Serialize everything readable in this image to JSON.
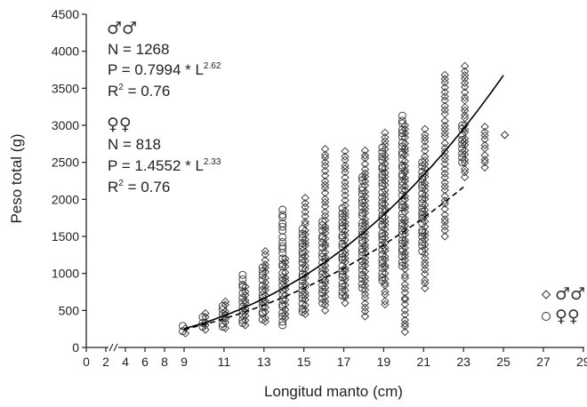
{
  "chart_data": {
    "type": "scatter",
    "xlabel": "Longitud manto (cm)",
    "ylabel": "Peso total (g)",
    "xlim": [
      0,
      29
    ],
    "ylim": [
      0,
      4500
    ],
    "x_ticks": [
      0,
      2,
      4,
      6,
      8,
      9,
      11,
      13,
      15,
      17,
      19,
      21,
      23,
      25,
      27,
      29
    ],
    "y_ticks": [
      0,
      500,
      1000,
      1500,
      2000,
      2500,
      3000,
      3500,
      4000,
      4500
    ],
    "axis_break": "x between 2 and 9",
    "grid": false,
    "legend_position": "bottom-right",
    "series": [
      {
        "name": "♂♂",
        "marker": "diamond",
        "line_style": "solid",
        "curve": {
          "a": 0.7994,
          "b": 2.62,
          "x_range": [
            9,
            25
          ]
        },
        "points": [
          {
            "x": 9,
            "ymin": 190,
            "ymax": 260
          },
          {
            "x": 10,
            "ymin": 240,
            "ymax": 460
          },
          {
            "x": 11,
            "ymin": 260,
            "ymax": 620
          },
          {
            "x": 12,
            "ymin": 300,
            "ymax": 820
          },
          {
            "x": 13,
            "ymin": 350,
            "ymax": 1300
          },
          {
            "x": 14,
            "ymin": 400,
            "ymax": 1200
          },
          {
            "x": 15,
            "ymin": 450,
            "ymax": 2020
          },
          {
            "x": 16,
            "ymin": 500,
            "ymax": 2680
          },
          {
            "x": 17,
            "ymin": 600,
            "ymax": 2650
          },
          {
            "x": 18,
            "ymin": 420,
            "ymax": 2660
          },
          {
            "x": 19,
            "ymin": 580,
            "ymax": 2900
          },
          {
            "x": 20,
            "ymin": 210,
            "ymax": 3000
          },
          {
            "x": 21,
            "ymin": 800,
            "ymax": 2950
          },
          {
            "x": 22,
            "ymin": 1500,
            "ymax": 3680
          },
          {
            "x": 23,
            "ymin": 2300,
            "ymax": 3800
          },
          {
            "x": 24,
            "ymin": 2430,
            "ymax": 2980
          },
          {
            "x": 25,
            "ymin": 2870,
            "ymax": 2870
          }
        ]
      },
      {
        "name": "♀♀",
        "marker": "circle",
        "line_style": "dashed",
        "curve": {
          "a": 1.4552,
          "b": 2.33,
          "x_range": [
            9,
            23
          ]
        },
        "points": [
          {
            "x": 9,
            "ymin": 220,
            "ymax": 290
          },
          {
            "x": 10,
            "ymin": 280,
            "ymax": 410
          },
          {
            "x": 11,
            "ymin": 280,
            "ymax": 560
          },
          {
            "x": 12,
            "ymin": 330,
            "ymax": 980
          },
          {
            "x": 13,
            "ymin": 380,
            "ymax": 1080
          },
          {
            "x": 14,
            "ymin": 300,
            "ymax": 1860
          },
          {
            "x": 15,
            "ymin": 480,
            "ymax": 1600
          },
          {
            "x": 16,
            "ymin": 600,
            "ymax": 1700
          },
          {
            "x": 17,
            "ymin": 700,
            "ymax": 1880
          },
          {
            "x": 18,
            "ymin": 800,
            "ymax": 2300
          },
          {
            "x": 19,
            "ymin": 900,
            "ymax": 2700
          },
          {
            "x": 20,
            "ymin": 1100,
            "ymax": 3130
          },
          {
            "x": 21,
            "ymin": 1300,
            "ymax": 2500
          },
          {
            "x": 23,
            "ymin": 2500,
            "ymax": 3000
          }
        ]
      }
    ],
    "annotations": {
      "males": {
        "symbol": "♂♂",
        "n": "N = 1268",
        "eq_base": "P = 0.7994 * L",
        "eq_exp": "2.62",
        "r2_base": "R",
        "r2_sup": "2",
        "r2_val": " = 0.76"
      },
      "females": {
        "symbol": "♀♀",
        "n": "N = 818",
        "eq_base": "P = 1.4552 * L",
        "eq_exp": "2.33",
        "r2_base": "R",
        "r2_sup": "2",
        "r2_val": " = 0.76"
      }
    },
    "legend": [
      {
        "marker": "diamond",
        "label": "♂♂"
      },
      {
        "marker": "circle",
        "label": "♀♀"
      }
    ]
  }
}
